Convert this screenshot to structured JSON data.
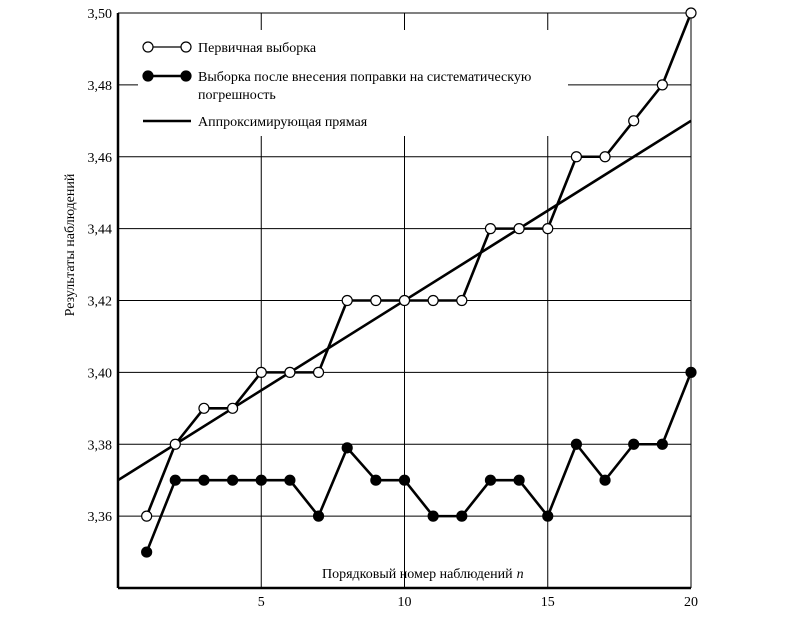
{
  "chart_data": {
    "type": "line",
    "title": "",
    "xlabel": "Порядковый номер наблюдений",
    "xlabel_var": "n",
    "ylabel": "Результаты наблюдений",
    "xlim": [
      0,
      20
    ],
    "ylim": [
      3.34,
      3.5
    ],
    "x_ticks": [
      5,
      10,
      15,
      20
    ],
    "x_tick_labels": [
      "5",
      "10",
      "15",
      "20"
    ],
    "y_ticks": [
      3.36,
      3.38,
      3.4,
      3.42,
      3.44,
      3.46,
      3.48,
      3.5
    ],
    "y_tick_labels": [
      "3,36",
      "3,38",
      "3,40",
      "3,42",
      "3,44",
      "3,46",
      "3,48",
      "3,50"
    ],
    "grid": true,
    "legend_position": "top-left",
    "x": [
      1,
      2,
      3,
      4,
      5,
      6,
      7,
      8,
      9,
      10,
      11,
      12,
      13,
      14,
      15,
      16,
      17,
      18,
      19,
      20
    ],
    "series": [
      {
        "name": "Первичная выборка",
        "marker": "open-circle",
        "values": [
          3.36,
          3.38,
          3.39,
          3.39,
          3.4,
          3.4,
          3.4,
          3.42,
          3.42,
          3.42,
          3.42,
          3.42,
          3.44,
          3.44,
          3.44,
          3.46,
          3.46,
          3.47,
          3.48,
          3.5
        ]
      },
      {
        "name": "Выборка после внесения поправки на систематическую погрешность",
        "name_lines": [
          "Выборка после внесения поправки на систематическую",
          "погрешность"
        ],
        "marker": "filled-circle",
        "values": [
          3.35,
          3.37,
          3.37,
          3.37,
          3.37,
          3.37,
          3.36,
          3.379,
          3.37,
          3.37,
          3.36,
          3.36,
          3.37,
          3.37,
          3.36,
          3.38,
          3.37,
          3.38,
          3.38,
          3.4
        ]
      },
      {
        "name": "Аппроксимирующая прямая",
        "marker": "none",
        "x": [
          0,
          20
        ],
        "values": [
          3.37,
          3.47
        ]
      }
    ]
  }
}
